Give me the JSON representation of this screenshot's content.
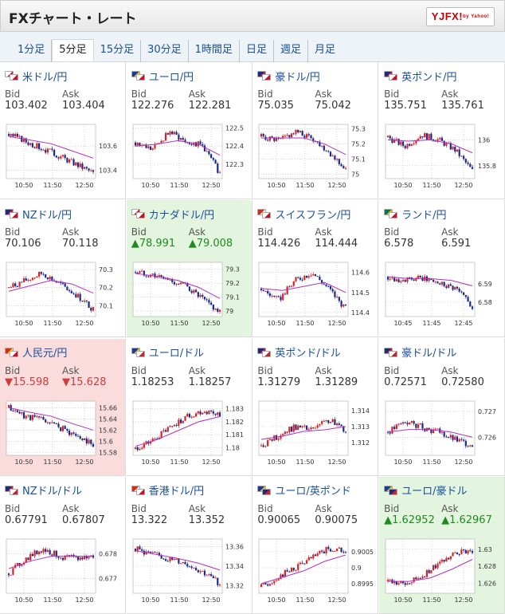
{
  "header": {
    "title": "FXチャート・レート",
    "logo": "YJFX!",
    "logo_sub": "by Yahoo!"
  },
  "tabs": [
    "1分足",
    "5分足",
    "15分足",
    "30分足",
    "1時間足",
    "日足",
    "週足",
    "月足"
  ],
  "active_tab": 1,
  "labels": {
    "bid": "Bid",
    "ask": "Ask"
  },
  "colors": {
    "up_bg": "#e4f5df",
    "down_bg": "#fbdcdc",
    "candle_up": "#e02020",
    "candle_down": "#1a2a8a",
    "ma": "#b030c0"
  },
  "pairs": [
    {
      "name": "米ドル/円",
      "flags": [
        "us",
        "jp"
      ],
      "bid": "103.402",
      "ask": "103.404",
      "trend": "",
      "bid_mark": "",
      "ask_mark": ""
    },
    {
      "name": "ユーロ/円",
      "flags": [
        "eu",
        "jp"
      ],
      "bid": "122.276",
      "ask": "122.281",
      "trend": "",
      "bid_mark": "",
      "ask_mark": ""
    },
    {
      "name": "豪ドル/円",
      "flags": [
        "au",
        "jp"
      ],
      "bid": "75.035",
      "ask": "75.042",
      "trend": "",
      "bid_mark": "",
      "ask_mark": ""
    },
    {
      "name": "英ポンド/円",
      "flags": [
        "gb",
        "jp"
      ],
      "bid": "135.751",
      "ask": "135.761",
      "trend": "",
      "bid_mark": "",
      "ask_mark": ""
    },
    {
      "name": "NZドル/円",
      "flags": [
        "nz",
        "jp"
      ],
      "bid": "70.106",
      "ask": "70.118",
      "trend": "",
      "bid_mark": "",
      "ask_mark": ""
    },
    {
      "name": "カナダドル/円",
      "flags": [
        "ca",
        "jp"
      ],
      "bid": "78.991",
      "ask": "79.008",
      "trend": "up",
      "bid_mark": "▲",
      "ask_mark": "▲"
    },
    {
      "name": "スイスフラン/円",
      "flags": [
        "ch",
        "jp"
      ],
      "bid": "114.426",
      "ask": "114.444",
      "trend": "",
      "bid_mark": "",
      "ask_mark": ""
    },
    {
      "name": "ランド/円",
      "flags": [
        "za",
        "jp"
      ],
      "bid": "6.578",
      "ask": "6.591",
      "trend": "",
      "bid_mark": "",
      "ask_mark": ""
    },
    {
      "name": "人民元/円",
      "flags": [
        "cn",
        "jp"
      ],
      "bid": "15.598",
      "ask": "15.628",
      "trend": "down",
      "bid_mark": "▼",
      "ask_mark": "▼"
    },
    {
      "name": "ユーロ/ドル",
      "flags": [
        "eu",
        "us"
      ],
      "bid": "1.18253",
      "ask": "1.18257",
      "trend": "",
      "bid_mark": "",
      "ask_mark": ""
    },
    {
      "name": "英ポンド/ドル",
      "flags": [
        "gb",
        "us"
      ],
      "bid": "1.31279",
      "ask": "1.31289",
      "trend": "",
      "bid_mark": "",
      "ask_mark": ""
    },
    {
      "name": "豪ドル/ドル",
      "flags": [
        "au",
        "us"
      ],
      "bid": "0.72571",
      "ask": "0.72580",
      "trend": "",
      "bid_mark": "",
      "ask_mark": ""
    },
    {
      "name": "NZドル/ドル",
      "flags": [
        "nz",
        "us"
      ],
      "bid": "0.67791",
      "ask": "0.67807",
      "trend": "",
      "bid_mark": "",
      "ask_mark": ""
    },
    {
      "name": "香港ドル/円",
      "flags": [
        "hk",
        "jp"
      ],
      "bid": "13.322",
      "ask": "13.352",
      "trend": "",
      "bid_mark": "",
      "ask_mark": ""
    },
    {
      "name": "ユーロ/英ポンド",
      "flags": [
        "eu",
        "gb"
      ],
      "bid": "0.90065",
      "ask": "0.90075",
      "trend": "",
      "bid_mark": "",
      "ask_mark": ""
    },
    {
      "name": "ユーロ/豪ドル",
      "flags": [
        "eu",
        "au"
      ],
      "bid": "1.62952",
      "ask": "1.62967",
      "trend": "up",
      "bid_mark": "▲",
      "ask_mark": "▲"
    }
  ],
  "chart_data": [
    {
      "type": "candlestick",
      "yticks": [
        "103.6",
        "103.4"
      ],
      "ytick_vals": [
        103.6,
        103.4
      ],
      "ylim": [
        103.33,
        103.78
      ],
      "xticks": [
        "10:50",
        "11:50",
        "12:50"
      ],
      "trend": [
        103.7,
        103.64,
        103.58,
        103.52,
        103.45,
        103.38
      ],
      "ma": [
        103.68,
        103.65,
        103.62,
        103.56,
        103.5
      ]
    },
    {
      "type": "candlestick",
      "yticks": [
        "122.5",
        "122.4",
        "122.3"
      ],
      "ytick_vals": [
        122.5,
        122.4,
        122.3
      ],
      "ylim": [
        122.22,
        122.52
      ],
      "xticks": [
        "10:50",
        "11:50",
        "12:50"
      ],
      "trend": [
        122.42,
        122.38,
        122.48,
        122.43,
        122.4,
        122.25
      ],
      "ma": [
        122.4,
        122.41,
        122.43,
        122.41,
        122.35
      ]
    },
    {
      "type": "candlestick",
      "yticks": [
        "75.3",
        "75.2",
        "75.1",
        "75"
      ],
      "ytick_vals": [
        75.3,
        75.2,
        75.1,
        75.0
      ],
      "ylim": [
        74.97,
        75.33
      ],
      "xticks": [
        "10:50",
        "11:50",
        "12:50"
      ],
      "trend": [
        75.25,
        75.22,
        75.28,
        75.24,
        75.15,
        75.03
      ],
      "ma": [
        75.24,
        75.24,
        75.24,
        75.2,
        75.13
      ]
    },
    {
      "type": "candlestick",
      "yticks": [
        "136",
        "135.8"
      ],
      "ytick_vals": [
        136.0,
        135.8
      ],
      "ylim": [
        135.7,
        136.12
      ],
      "xticks": [
        "10:50",
        "11:50",
        "12:50"
      ],
      "trend": [
        136.02,
        135.95,
        136.04,
        136.0,
        135.92,
        135.76
      ],
      "ma": [
        136.0,
        135.99,
        136.0,
        135.97,
        135.9
      ]
    },
    {
      "type": "candlestick",
      "yticks": [
        "70.3",
        "70.2",
        "70.1"
      ],
      "ytick_vals": [
        70.3,
        70.2,
        70.1
      ],
      "ylim": [
        70.04,
        70.34
      ],
      "xticks": [
        "10:50",
        "11:50",
        "12:50"
      ],
      "trend": [
        70.2,
        70.24,
        70.28,
        70.22,
        70.16,
        70.08
      ],
      "ma": [
        70.18,
        70.21,
        70.24,
        70.22,
        70.17
      ]
    },
    {
      "type": "candlestick",
      "yticks": [
        "79.3",
        "79.2",
        "79.1",
        "79"
      ],
      "ytick_vals": [
        79.3,
        79.2,
        79.1,
        79.0
      ],
      "ylim": [
        78.96,
        79.35
      ],
      "xticks": [
        "10:50",
        "11:50",
        "12:50"
      ],
      "trend": [
        79.28,
        79.26,
        79.22,
        79.18,
        79.08,
        78.99
      ],
      "ma": [
        79.27,
        79.25,
        79.22,
        79.17,
        79.09
      ]
    },
    {
      "type": "candlestick",
      "yticks": [
        "114.6",
        "114.5",
        "114.4"
      ],
      "ytick_vals": [
        114.6,
        114.5,
        114.4
      ],
      "ylim": [
        114.38,
        114.65
      ],
      "xticks": [
        "10:50",
        "11:50",
        "12:50"
      ],
      "trend": [
        114.52,
        114.46,
        114.56,
        114.6,
        114.52,
        114.42
      ],
      "ma": [
        114.52,
        114.51,
        114.53,
        114.55,
        114.5
      ]
    },
    {
      "type": "candlestick",
      "yticks": [
        "6.59",
        "6.58"
      ],
      "ytick_vals": [
        6.59,
        6.58
      ],
      "ylim": [
        6.572,
        6.602
      ],
      "xticks": [
        "10:45",
        "11:45",
        "12:45"
      ],
      "trend": [
        6.594,
        6.592,
        6.593,
        6.591,
        6.588,
        6.578
      ],
      "ma": [
        6.594,
        6.593,
        6.593,
        6.592,
        6.589
      ]
    },
    {
      "type": "candlestick",
      "yticks": [
        "15.66",
        "15.64",
        "15.62",
        "15.6",
        "15.58"
      ],
      "ytick_vals": [
        15.66,
        15.64,
        15.62,
        15.6,
        15.58
      ],
      "ylim": [
        15.575,
        15.672
      ],
      "xticks": [
        "10:50",
        "11:50",
        "12:50"
      ],
      "trend": [
        15.66,
        15.645,
        15.64,
        15.625,
        15.61,
        15.595
      ],
      "ma": [
        15.66,
        15.652,
        15.645,
        15.632,
        15.62
      ]
    },
    {
      "type": "candlestick",
      "yticks": [
        "1.183",
        "1.182",
        "1.181",
        "1.18"
      ],
      "ytick_vals": [
        1.183,
        1.182,
        1.181,
        1.18
      ],
      "ylim": [
        1.1794,
        1.1836
      ],
      "xticks": [
        "10:50",
        "11:50",
        "12:50"
      ],
      "trend": [
        1.1799,
        1.1805,
        1.1815,
        1.1824,
        1.1828,
        1.1826
      ],
      "ma": [
        1.1801,
        1.1806,
        1.1813,
        1.182,
        1.1824
      ]
    },
    {
      "type": "candlestick",
      "yticks": [
        "1.314",
        "1.313",
        "1.312"
      ],
      "ytick_vals": [
        1.314,
        1.313,
        1.312
      ],
      "ylim": [
        1.3112,
        1.3146
      ],
      "xticks": [
        "10:50",
        "11:50",
        "12:50"
      ],
      "trend": [
        1.3118,
        1.3124,
        1.313,
        1.3128,
        1.3134,
        1.3128
      ],
      "ma": [
        1.3122,
        1.3124,
        1.3127,
        1.3128,
        1.313
      ]
    },
    {
      "type": "candlestick",
      "yticks": [
        "0.727",
        "0.726"
      ],
      "ytick_vals": [
        0.727,
        0.726
      ],
      "ylim": [
        0.7253,
        0.7274
      ],
      "xticks": [
        "10:50",
        "11:50",
        "12:50"
      ],
      "trend": [
        0.7262,
        0.7266,
        0.7264,
        0.7262,
        0.7259,
        0.7257
      ],
      "ma": [
        0.7262,
        0.7263,
        0.7263,
        0.7262,
        0.726
      ]
    },
    {
      "type": "candlestick",
      "yticks": [
        "0.678",
        "0.677"
      ],
      "ytick_vals": [
        0.678,
        0.677
      ],
      "ylim": [
        0.6764,
        0.6786
      ],
      "xticks": [
        "10:50",
        "11:50",
        "12:50"
      ],
      "trend": [
        0.6772,
        0.6778,
        0.6782,
        0.6779,
        0.6778,
        0.6779
      ],
      "ma": [
        0.6774,
        0.6777,
        0.6779,
        0.6779,
        0.6779
      ]
    },
    {
      "type": "candlestick",
      "yticks": [
        "13.36",
        "13.34",
        "13.32"
      ],
      "ytick_vals": [
        13.36,
        13.34,
        13.32
      ],
      "ylim": [
        13.312,
        13.368
      ],
      "xticks": [
        "10:50",
        "11:50",
        "12:50"
      ],
      "trend": [
        13.358,
        13.352,
        13.347,
        13.343,
        13.334,
        13.322
      ],
      "ma": [
        13.356,
        13.352,
        13.348,
        13.343,
        13.336
      ]
    },
    {
      "type": "candlestick",
      "yticks": [
        "0.9005",
        "0.9",
        "0.8995"
      ],
      "ytick_vals": [
        0.9005,
        0.9,
        0.8995
      ],
      "ylim": [
        0.8992,
        0.9009
      ],
      "xticks": [
        "10:50",
        "11:50",
        "12:50"
      ],
      "trend": [
        0.8994,
        0.8997,
        0.9,
        0.9003,
        0.9006,
        0.9005
      ],
      "ma": [
        0.8995,
        0.8997,
        0.8999,
        0.9002,
        0.9004
      ]
    },
    {
      "type": "candlestick",
      "yticks": [
        "1.63",
        "1.628",
        "1.626"
      ],
      "ytick_vals": [
        1.63,
        1.628,
        1.626
      ],
      "ylim": [
        1.6248,
        1.6312
      ],
      "xticks": [
        "10:50",
        "11:50",
        "12:50"
      ],
      "trend": [
        1.6262,
        1.6258,
        1.6268,
        1.6282,
        1.6298,
        1.6296
      ],
      "ma": [
        1.6262,
        1.6262,
        1.6266,
        1.6276,
        1.6288
      ]
    }
  ]
}
